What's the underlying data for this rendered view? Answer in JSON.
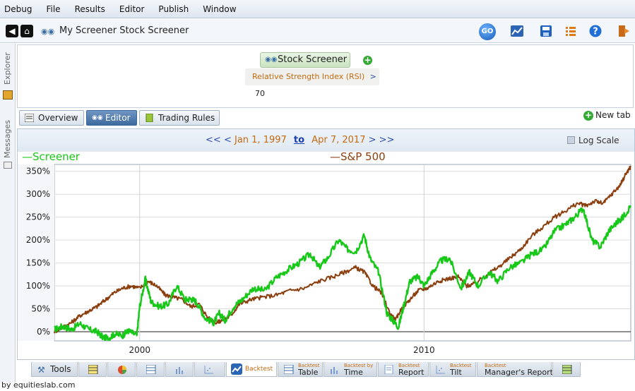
{
  "menubar": {
    "items": [
      "Debug",
      "File",
      "Results",
      "Editor",
      "Publish",
      "Window"
    ]
  },
  "toolbar": {
    "title": "My Screener Stock Screener",
    "go_label": "GO",
    "icons": [
      "back-icon",
      "home-icon",
      "binoculars-icon",
      "go-icon",
      "chart-icon",
      "save-icon",
      "list-icon",
      "help-icon",
      "exit-icon"
    ]
  },
  "side_rail": {
    "explorer_label": "Explorer",
    "messages_label": "Messages"
  },
  "criteria": {
    "tab_label": "Stock Screener",
    "rule": {
      "name": "Relative Strength Index (RSI)",
      "operator": ">",
      "value": "70"
    }
  },
  "view_tabs": [
    {
      "label": "Overview",
      "active": false
    },
    {
      "label": "Editor",
      "active": true
    },
    {
      "label": "Trading Rules",
      "active": false
    }
  ],
  "new_tab_label": "New tab",
  "date_bar": {
    "prev_prev": "<<",
    "prev": "<",
    "start": "Jan 1, 1997",
    "to": "to",
    "end": "Apr 7, 2017",
    "next": ">",
    "next_next": ">>",
    "log_scale_label": "Log Scale"
  },
  "legend": {
    "screener": "Screener",
    "sp500": "S&P 500"
  },
  "colors": {
    "screener": "#18c818",
    "sp500": "#8b3f0f",
    "accent": "#3d6a9e"
  },
  "chart_data": {
    "type": "line",
    "xlabel": "",
    "ylabel": "",
    "x_range": [
      1997.0,
      2017.27
    ],
    "ylim": [
      -20,
      365
    ],
    "y_ticks": [
      "0%",
      "50%",
      "100%",
      "150%",
      "200%",
      "250%",
      "300%",
      "350%"
    ],
    "y_tick_values": [
      0,
      50,
      100,
      150,
      200,
      250,
      300,
      350
    ],
    "x_ticks": [
      "2000",
      "2010"
    ],
    "x_tick_values": [
      2000,
      2010
    ],
    "grid": "on",
    "legend_placement": "top-left and top-center",
    "series": [
      {
        "name": "Screener",
        "x": [
          1997.0,
          1997.3,
          1997.6,
          1997.9,
          1998.2,
          1998.5,
          1998.7,
          1998.9,
          1999.1,
          1999.4,
          1999.6,
          1999.9,
          2000.0,
          2000.2,
          2000.4,
          2000.7,
          2001.0,
          2001.3,
          2001.6,
          2001.8,
          2002.0,
          2002.3,
          2002.6,
          2002.8,
          2003.0,
          2003.3,
          2003.6,
          2004.0,
          2004.4,
          2004.8,
          2005.2,
          2005.6,
          2006.0,
          2006.3,
          2006.6,
          2007.0,
          2007.3,
          2007.6,
          2007.9,
          2008.1,
          2008.4,
          2008.7,
          2008.9,
          2009.1,
          2009.3,
          2009.5,
          2009.8,
          2010.0,
          2010.3,
          2010.6,
          2010.9,
          2011.3,
          2011.6,
          2011.9,
          2012.3,
          2012.6,
          2013.0,
          2013.4,
          2013.8,
          2014.2,
          2014.6,
          2015.0,
          2015.3,
          2015.6,
          2015.9,
          2016.2,
          2016.5,
          2016.8,
          2017.0,
          2017.27
        ],
        "y": [
          5,
          12,
          5,
          18,
          5,
          0,
          -12,
          -15,
          -5,
          -8,
          2,
          -8,
          55,
          115,
          65,
          55,
          60,
          100,
          70,
          72,
          65,
          30,
          20,
          40,
          25,
          55,
          70,
          95,
          90,
          118,
          135,
          150,
          170,
          140,
          160,
          200,
          180,
          175,
          210,
          160,
          130,
          40,
          25,
          10,
          60,
          110,
          120,
          100,
          130,
          155,
          160,
          95,
          130,
          100,
          130,
          110,
          140,
          150,
          170,
          180,
          220,
          235,
          250,
          270,
          200,
          185,
          220,
          240,
          250,
          275
        ]
      },
      {
        "name": "S&P 500",
        "x": [
          1997.0,
          1997.3,
          1997.6,
          1997.9,
          1998.2,
          1998.5,
          1998.8,
          1999.1,
          1999.4,
          1999.7,
          2000.0,
          2000.3,
          2000.6,
          2000.9,
          2001.2,
          2001.5,
          2001.8,
          2002.1,
          2002.4,
          2002.7,
          2002.9,
          2003.2,
          2003.5,
          2003.9,
          2004.3,
          2004.8,
          2005.3,
          2005.8,
          2006.3,
          2006.8,
          2007.2,
          2007.6,
          2007.9,
          2008.2,
          2008.5,
          2008.8,
          2009.0,
          2009.2,
          2009.5,
          2009.8,
          2010.1,
          2010.5,
          2010.8,
          2011.2,
          2011.5,
          2011.8,
          2012.2,
          2012.6,
          2013.0,
          2013.4,
          2013.8,
          2014.2,
          2014.6,
          2015.0,
          2015.4,
          2015.7,
          2016.0,
          2016.3,
          2016.6,
          2016.9,
          2017.1,
          2017.27
        ],
        "y": [
          0,
          10,
          20,
          35,
          45,
          55,
          70,
          85,
          95,
          100,
          95,
          110,
          100,
          80,
          75,
          70,
          55,
          60,
          30,
          20,
          25,
          35,
          60,
          70,
          75,
          80,
          90,
          95,
          110,
          120,
          130,
          140,
          130,
          100,
          85,
          40,
          25,
          50,
          70,
          90,
          95,
          110,
          115,
          120,
          100,
          105,
          125,
          140,
          160,
          180,
          210,
          230,
          250,
          265,
          280,
          275,
          285,
          280,
          300,
          320,
          345,
          360
        ]
      }
    ]
  },
  "bottom_tabs": [
    {
      "small": "",
      "main": "Tools"
    },
    {
      "small": "",
      "main": ""
    },
    {
      "small": "",
      "main": ""
    },
    {
      "small": "",
      "main": ""
    },
    {
      "small": "",
      "main": ""
    },
    {
      "small": "",
      "main": ""
    },
    {
      "small": "",
      "main": "Backtest"
    },
    {
      "small": "Backtest",
      "main": "Table"
    },
    {
      "small": "Backtest by",
      "main": "Time"
    },
    {
      "small": "Backtest",
      "main": "Report"
    },
    {
      "small": "Backtest",
      "main": "Tilt"
    },
    {
      "small": "Backtest",
      "main": "Manager's Report"
    },
    {
      "small": "",
      "main": ""
    }
  ],
  "footer_credit": "by equitieslab.com"
}
